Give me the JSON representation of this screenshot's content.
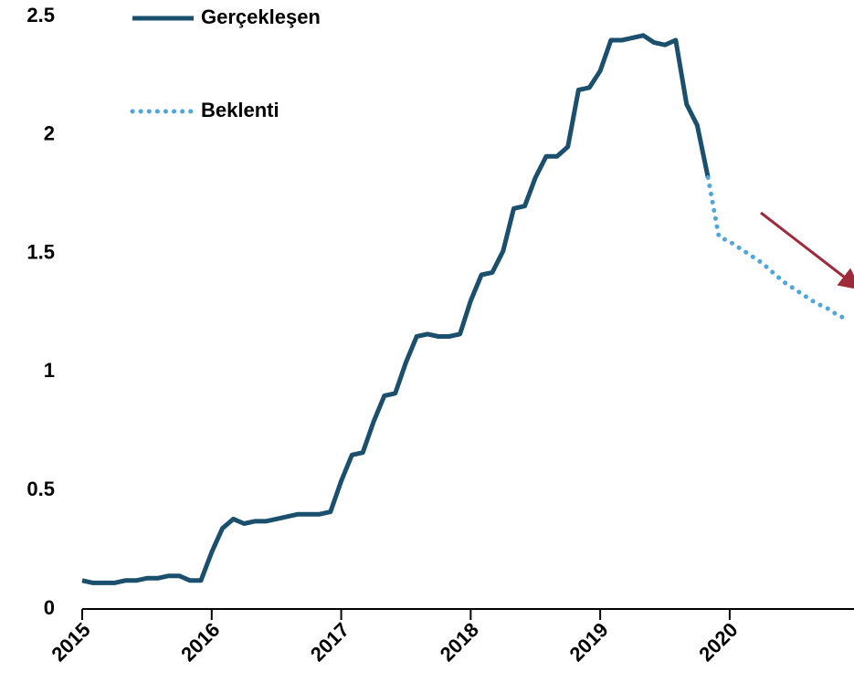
{
  "chart_data": {
    "type": "line",
    "x": [
      2015,
      2015.083,
      2015.167,
      2015.25,
      2015.333,
      2015.417,
      2015.5,
      2015.583,
      2015.667,
      2015.75,
      2015.833,
      2015.917,
      2016,
      2016.083,
      2016.167,
      2016.25,
      2016.333,
      2016.417,
      2016.5,
      2016.583,
      2016.667,
      2016.75,
      2016.833,
      2016.917,
      2017,
      2017.083,
      2017.167,
      2017.25,
      2017.333,
      2017.417,
      2017.5,
      2017.583,
      2017.667,
      2017.75,
      2017.833,
      2017.917,
      2018,
      2018.083,
      2018.167,
      2018.25,
      2018.333,
      2018.417,
      2018.5,
      2018.583,
      2018.667,
      2018.75,
      2018.833,
      2018.917,
      2019,
      2019.083,
      2019.167,
      2019.25,
      2019.333,
      2019.417,
      2019.5,
      2019.583,
      2019.667,
      2019.75,
      2019.833,
      2019.917,
      2020,
      2020.083,
      2020.167,
      2020.25,
      2020.333,
      2020.417,
      2020.5,
      2020.583,
      2020.667,
      2020.75,
      2020.833,
      2020.917
    ],
    "series": [
      {
        "name": "Gerçekleşen",
        "color": "#1b4f6e",
        "style": "solid",
        "values": [
          0.12,
          0.11,
          0.11,
          0.11,
          0.12,
          0.12,
          0.13,
          0.13,
          0.14,
          0.14,
          0.12,
          0.12,
          0.24,
          0.34,
          0.38,
          0.36,
          0.37,
          0.37,
          0.38,
          0.39,
          0.4,
          0.4,
          0.4,
          0.41,
          0.54,
          0.65,
          0.66,
          0.79,
          0.9,
          0.91,
          1.04,
          1.15,
          1.16,
          1.15,
          1.15,
          1.16,
          1.3,
          1.41,
          1.42,
          1.51,
          1.69,
          1.7,
          1.82,
          1.91,
          1.91,
          1.95,
          2.19,
          2.2,
          2.27,
          2.4,
          2.4,
          2.41,
          2.42,
          2.39,
          2.38,
          2.4,
          2.13,
          2.04,
          1.82,
          null,
          null,
          null,
          null,
          null,
          null,
          null,
          null,
          null,
          null,
          null,
          null,
          null
        ]
      },
      {
        "name": "Beklenti",
        "color": "#4ea7dc",
        "style": "dotted",
        "values": [
          null,
          null,
          null,
          null,
          null,
          null,
          null,
          null,
          null,
          null,
          null,
          null,
          null,
          null,
          null,
          null,
          null,
          null,
          null,
          null,
          null,
          null,
          null,
          null,
          null,
          null,
          null,
          null,
          null,
          null,
          null,
          null,
          null,
          null,
          null,
          null,
          null,
          null,
          null,
          null,
          null,
          null,
          null,
          null,
          null,
          null,
          null,
          null,
          null,
          null,
          null,
          null,
          null,
          null,
          null,
          null,
          null,
          null,
          1.82,
          1.57,
          1.55,
          1.52,
          1.49,
          1.46,
          1.42,
          1.38,
          1.35,
          1.32,
          1.29,
          1.27,
          1.24,
          1.22
        ]
      }
    ],
    "xlim": [
      2015,
      2020.96
    ],
    "xticks": [
      2015,
      2016,
      2017,
      2018,
      2019,
      2020
    ],
    "ylim": [
      0,
      2.5
    ],
    "yticks": [
      0,
      {
        "value": 0.5,
        "label": "0.5"
      },
      1,
      {
        "value": 1.5,
        "label": "1.5"
      },
      2,
      {
        "value": 2.5,
        "label": "2.5"
      }
    ],
    "grid": false
  }
}
